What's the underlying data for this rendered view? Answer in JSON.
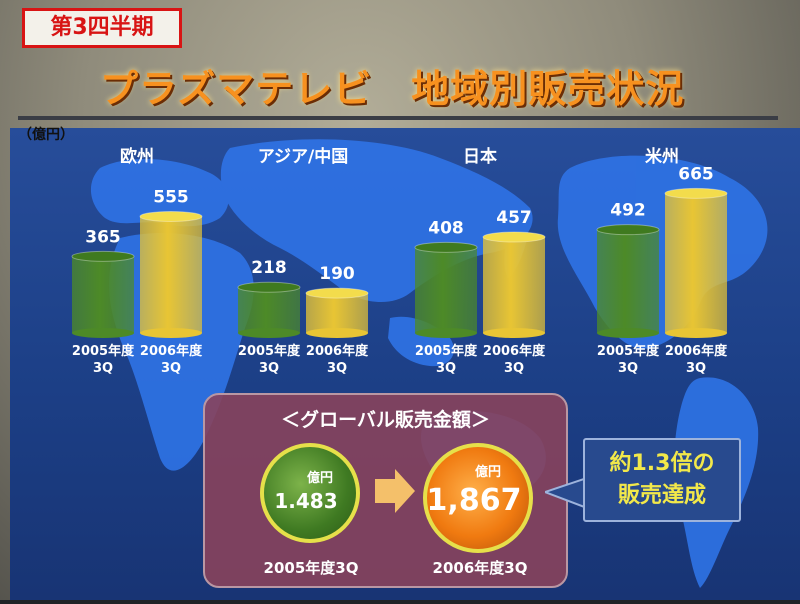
{
  "slide": {
    "badge": "第3四半期",
    "title": "プラズマテレビ　地域別販売状況",
    "unit": "（億円）"
  },
  "colors": {
    "bar_2005": "#4d8a27",
    "bar_2005_top": "#3f7a1f",
    "bar_2006": "#e8c534",
    "bar_2006_top": "#f3dc4c",
    "title": "#f7911f",
    "badge": "#d81414"
  },
  "chart_data": {
    "type": "bar",
    "categories": [
      "欧州",
      "アジア/中国",
      "日本",
      "米州"
    ],
    "series": [
      {
        "name": "2005年度3Q",
        "values": [
          365,
          218,
          408,
          492
        ]
      },
      {
        "name": "2006年度3Q",
        "values": [
          555,
          190,
          457,
          665
        ]
      }
    ],
    "tick_labels": [
      "2005年度\n3Q",
      "2006年度\n3Q"
    ],
    "ylabel": "（億円）",
    "grid": false
  },
  "global": {
    "title": "＜グローバル販売金額＞",
    "unit": "億円",
    "value_2005": "1.483",
    "value_2006": "1,867",
    "label_2005": "2005年度3Q",
    "label_2006": "2006年度3Q"
  },
  "callout": {
    "line1": "約1.3倍の",
    "line2": "販売達成"
  }
}
